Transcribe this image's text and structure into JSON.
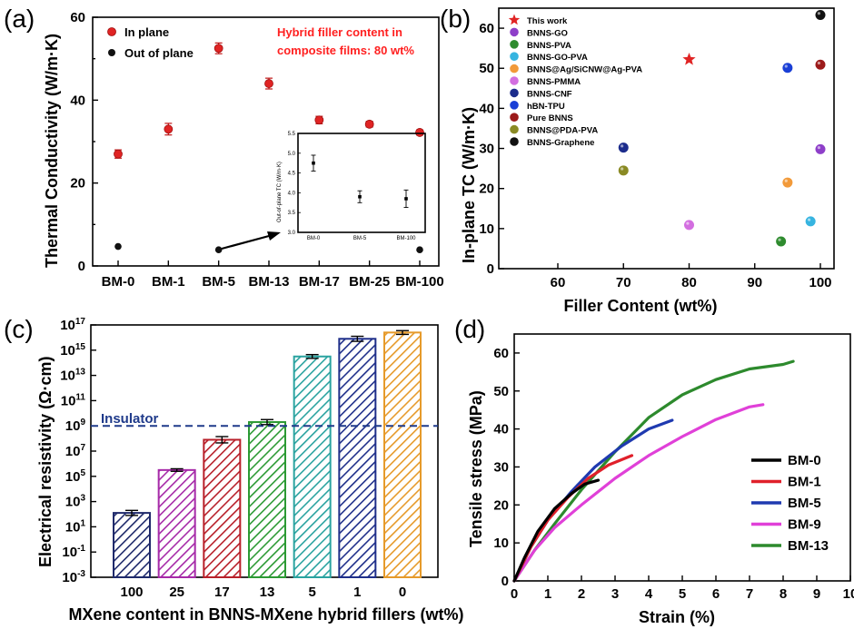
{
  "colors": {
    "red_series": "#e02424",
    "black_series": "#000000",
    "annotation_red": "#ff2020",
    "insulator_line": "#1f3a8a"
  },
  "chart_data": [
    {
      "panel": "(a)",
      "type": "scatter",
      "ylabel": "Thermal Conductivity (W/m·K)",
      "categories": [
        "BM-0",
        "BM-1",
        "BM-5",
        "BM-13",
        "BM-17",
        "BM-25",
        "BM-100"
      ],
      "ylim": [
        0,
        60
      ],
      "yticks": [
        "0",
        "20",
        "40",
        "60"
      ],
      "series": [
        {
          "name": "In plane",
          "values": [
            27,
            33,
            52.5,
            44,
            35.2,
            34.2,
            32.2
          ],
          "errors": [
            1.0,
            1.4,
            1.3,
            1.3,
            0.9,
            0.7,
            0.6
          ]
        },
        {
          "name": "Out of plane",
          "values": [
            4.7,
            0,
            3.9,
            0,
            0,
            0,
            3.9
          ]
        }
      ],
      "annotation": [
        "Hybrid filler content in",
        "composite films: 80 wt%"
      ],
      "inset": {
        "ylabel": "Out-of-plane TC (W/m·K)",
        "categories": [
          "BM-0",
          "BM-5",
          "BM-100"
        ],
        "ylim": [
          3.0,
          5.5
        ],
        "yticks": [
          "3.0",
          "3.5",
          "4.0",
          "4.5",
          "5.0",
          "5.5"
        ],
        "values": [
          4.75,
          3.9,
          3.85
        ],
        "errors": [
          0.2,
          0.15,
          0.22
        ]
      }
    },
    {
      "panel": "(b)",
      "type": "scatter",
      "xlabel": "Filler Content (wt%)",
      "ylabel": "In-plane TC (W/m·K)",
      "xlim": [
        52,
        102
      ],
      "ylim": [
        0,
        65
      ],
      "xticks": [
        "60",
        "70",
        "80",
        "90",
        "100"
      ],
      "yticks": [
        "0",
        "10",
        "20",
        "30",
        "40",
        "50",
        "60"
      ],
      "series": [
        {
          "name": "This work",
          "marker": "star",
          "color": "#e02424",
          "points": [
            [
              80,
              52.2
            ]
          ]
        },
        {
          "name": "BNNS-GO",
          "color": "#8e3fc9",
          "points": [
            [
              100,
              29.8
            ]
          ]
        },
        {
          "name": "BNNS-PVA",
          "color": "#2e8b2e",
          "points": [
            [
              94,
              6.8
            ]
          ]
        },
        {
          "name": "BNNS-GO-PVA",
          "color": "#36b4e0",
          "points": [
            [
              98.5,
              11.8
            ]
          ]
        },
        {
          "name": "BNNS@Ag/SiCNW@Ag-PVA",
          "color": "#f29a3a",
          "points": [
            [
              95,
              21.5
            ]
          ]
        },
        {
          "name": "BNNS-PMMA",
          "color": "#d36ee0",
          "points": [
            [
              80,
              10.9
            ]
          ]
        },
        {
          "name": "BNNS-CNF",
          "color": "#1c2c8c",
          "points": [
            [
              70,
              30.2
            ]
          ]
        },
        {
          "name": "hBN-TPU",
          "color": "#1a3fd6",
          "points": [
            [
              95,
              50.1
            ]
          ]
        },
        {
          "name": "Pure BNNS",
          "color": "#9c1a1a",
          "points": [
            [
              100,
              50.9
            ]
          ]
        },
        {
          "name": "BNNS@PDA-PVA",
          "color": "#8a8a24",
          "points": [
            [
              70,
              24.5
            ]
          ]
        },
        {
          "name": "BNNS-Graphene",
          "color": "#111111",
          "points": [
            [
              100,
              63.3
            ]
          ]
        }
      ]
    },
    {
      "panel": "(c)",
      "type": "bar",
      "xlabel": "MXene content in BNNS-MXene hybrid fillers (wt%)",
      "ylabel": "Electrical resistivity (Ω·cm)",
      "scale": "log",
      "ylim_exponent": [
        -3,
        17
      ],
      "yticks": [
        "10-3",
        "10-1",
        "101",
        "103",
        "105",
        "107",
        "109",
        "1011",
        "1013",
        "1015",
        "1017"
      ],
      "categories": [
        "100",
        "25",
        "17",
        "13",
        "5",
        "1",
        "0"
      ],
      "values_log10": [
        2.1,
        5.5,
        7.9,
        9.3,
        14.5,
        15.9,
        16.4
      ],
      "errors_log10": [
        0.2,
        0.1,
        0.25,
        0.2,
        0.15,
        0.2,
        0.15
      ],
      "colors": [
        "#1f2a6b",
        "#a62aa8",
        "#b8202a",
        "#2c9a34",
        "#2aa3a0",
        "#1f2f8a",
        "#e69a2a"
      ],
      "reference_line": {
        "label": "Insulator",
        "value_log10": 9
      }
    },
    {
      "panel": "(d)",
      "type": "line",
      "xlabel": "Strain (%)",
      "ylabel": "Tensile stress (MPa)",
      "xlim": [
        0,
        10
      ],
      "ylim": [
        0,
        65
      ],
      "xticks": [
        "0",
        "1",
        "2",
        "3",
        "4",
        "5",
        "6",
        "7",
        "8",
        "9",
        "10"
      ],
      "yticks": [
        "0",
        "10",
        "20",
        "30",
        "40",
        "50",
        "60"
      ],
      "series": [
        {
          "name": "BM-0",
          "color": "#000000",
          "x": [
            0,
            0.3,
            0.7,
            1.2,
            1.7,
            2.1,
            2.5
          ],
          "y": [
            0,
            6,
            13,
            19,
            23,
            25.5,
            26.5
          ]
        },
        {
          "name": "BM-1",
          "color": "#e0202a",
          "x": [
            0,
            0.5,
            1.0,
            1.6,
            2.2,
            2.8,
            3.5
          ],
          "y": [
            0,
            9,
            16,
            22,
            27,
            30.5,
            33
          ]
        },
        {
          "name": "BM-5",
          "color": "#1f3ab0",
          "x": [
            0,
            0.5,
            1.0,
            1.7,
            2.4,
            3.2,
            4.0,
            4.7
          ],
          "y": [
            0,
            9,
            16,
            23.5,
            30,
            35.5,
            40,
            42.3
          ]
        },
        {
          "name": "BM-9",
          "color": "#e040d8",
          "x": [
            0,
            0.6,
            1.2,
            2.0,
            3.0,
            4.0,
            5.0,
            6.0,
            7.0,
            7.4
          ],
          "y": [
            0,
            8,
            14,
            20,
            27,
            33,
            38,
            42.5,
            45.8,
            46.4
          ]
        },
        {
          "name": "BM-13",
          "color": "#2d8a2d",
          "x": [
            0,
            0.6,
            1.2,
            2.0,
            3.0,
            4.0,
            5.0,
            6.0,
            7.0,
            8.0,
            8.3
          ],
          "y": [
            0,
            8,
            15,
            24,
            34,
            43,
            49,
            53,
            55.8,
            57,
            57.8
          ]
        }
      ]
    }
  ]
}
